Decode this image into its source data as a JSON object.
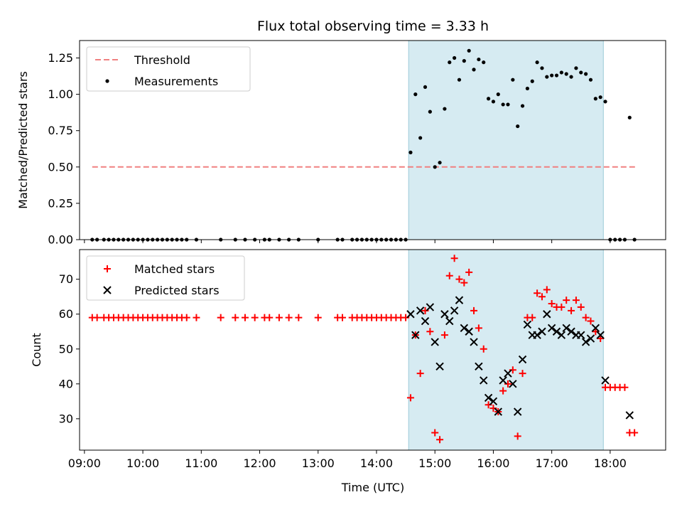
{
  "title": "Flux total observing time = 3.33 h",
  "xlabel": "Time (UTC)",
  "chart_data": [
    {
      "type": "scatter",
      "ylabel": "Matched/Predicted stars",
      "ylim": [
        0,
        1.37
      ],
      "yticks": [
        0.0,
        0.25,
        0.5,
        0.75,
        1.0,
        1.25
      ],
      "yticklabels": [
        "0.00",
        "0.25",
        "0.50",
        "0.75",
        "1.00",
        "1.25"
      ],
      "xlim": [
        "08:55",
        "18:57"
      ],
      "shaded_span": [
        "14:33",
        "17:53"
      ],
      "legend_position": "upper-left",
      "threshold": {
        "name": "Threshold",
        "y": 0.5,
        "x_range": [
          "09:08",
          "18:27"
        ],
        "color": "#f08080"
      },
      "series": [
        {
          "name": "Measurements",
          "color": "#000000",
          "x": [
            "09:08",
            "09:13",
            "09:20",
            "09:25",
            "09:30",
            "09:35",
            "09:40",
            "09:45",
            "09:50",
            "09:55",
            "10:00",
            "10:05",
            "10:10",
            "10:15",
            "10:20",
            "10:25",
            "10:30",
            "10:35",
            "10:40",
            "10:45",
            "10:55",
            "11:20",
            "11:35",
            "11:45",
            "11:55",
            "12:05",
            "12:10",
            "12:20",
            "12:30",
            "12:40",
            "13:00",
            "13:20",
            "13:25",
            "13:35",
            "13:40",
            "13:45",
            "13:50",
            "13:55",
            "14:00",
            "14:05",
            "14:10",
            "14:15",
            "14:20",
            "14:25",
            "14:30",
            "14:35",
            "14:40",
            "14:45",
            "14:50",
            "14:55",
            "15:00",
            "15:05",
            "15:10",
            "15:15",
            "15:20",
            "15:25",
            "15:30",
            "15:35",
            "15:40",
            "15:45",
            "15:50",
            "15:55",
            "16:00",
            "16:05",
            "16:10",
            "16:15",
            "16:20",
            "16:25",
            "16:30",
            "16:35",
            "16:40",
            "16:45",
            "16:50",
            "16:55",
            "17:00",
            "17:05",
            "17:10",
            "17:15",
            "17:20",
            "17:25",
            "17:30",
            "17:35",
            "17:40",
            "17:45",
            "17:50",
            "17:55",
            "18:00",
            "18:05",
            "18:10",
            "18:15",
            "18:20",
            "18:25"
          ],
          "y": [
            0,
            0,
            0,
            0,
            0,
            0,
            0,
            0,
            0,
            0,
            0,
            0,
            0,
            0,
            0,
            0,
            0,
            0,
            0,
            0,
            0,
            0,
            0,
            0,
            0,
            0,
            0,
            0,
            0,
            0,
            0,
            0,
            0,
            0,
            0,
            0,
            0,
            0,
            0,
            0,
            0,
            0,
            0,
            0,
            0,
            0.6,
            1.0,
            0.7,
            1.05,
            0.88,
            0.5,
            0.53,
            0.9,
            1.22,
            1.25,
            1.1,
            1.23,
            1.3,
            1.17,
            1.24,
            1.22,
            0.97,
            0.95,
            1.0,
            0.93,
            0.93,
            1.1,
            0.78,
            0.92,
            1.04,
            1.09,
            1.22,
            1.18,
            1.12,
            1.13,
            1.13,
            1.15,
            1.14,
            1.12,
            1.18,
            1.15,
            1.14,
            1.1,
            0.97,
            0.98,
            0.95,
            0,
            0,
            0,
            0,
            0.84,
            0
          ]
        }
      ]
    },
    {
      "type": "scatter",
      "ylabel": "Count",
      "ylim": [
        21,
        78.5
      ],
      "yticks": [
        30,
        40,
        50,
        60,
        70
      ],
      "yticklabels": [
        "30",
        "40",
        "50",
        "60",
        "70"
      ],
      "xlim": [
        "08:55",
        "18:57"
      ],
      "xticks": [
        "09:00",
        "10:00",
        "11:00",
        "12:00",
        "13:00",
        "14:00",
        "15:00",
        "16:00",
        "17:00",
        "18:00"
      ],
      "shaded_span": [
        "14:33",
        "17:53"
      ],
      "legend_position": "upper-left",
      "series": [
        {
          "name": "Matched stars",
          "marker": "plus",
          "color": "#ff0000",
          "x": [
            "09:08",
            "09:13",
            "09:20",
            "09:25",
            "09:30",
            "09:35",
            "09:40",
            "09:45",
            "09:50",
            "09:55",
            "10:00",
            "10:05",
            "10:10",
            "10:15",
            "10:20",
            "10:25",
            "10:30",
            "10:35",
            "10:40",
            "10:45",
            "10:55",
            "11:20",
            "11:35",
            "11:45",
            "11:55",
            "12:05",
            "12:10",
            "12:20",
            "12:30",
            "12:40",
            "13:00",
            "13:20",
            "13:25",
            "13:35",
            "13:40",
            "13:45",
            "13:50",
            "13:55",
            "14:00",
            "14:05",
            "14:10",
            "14:15",
            "14:20",
            "14:25",
            "14:30",
            "14:35",
            "14:40",
            "14:45",
            "14:50",
            "14:55",
            "15:00",
            "15:05",
            "15:10",
            "15:15",
            "15:20",
            "15:25",
            "15:30",
            "15:35",
            "15:40",
            "15:45",
            "15:50",
            "15:55",
            "16:00",
            "16:05",
            "16:10",
            "16:15",
            "16:20",
            "16:25",
            "16:30",
            "16:35",
            "16:40",
            "16:45",
            "16:50",
            "16:55",
            "17:00",
            "17:05",
            "17:10",
            "17:15",
            "17:20",
            "17:25",
            "17:30",
            "17:35",
            "17:40",
            "17:45",
            "17:50",
            "17:55",
            "18:00",
            "18:05",
            "18:10",
            "18:15",
            "18:20",
            "18:25"
          ],
          "y": [
            59,
            59,
            59,
            59,
            59,
            59,
            59,
            59,
            59,
            59,
            59,
            59,
            59,
            59,
            59,
            59,
            59,
            59,
            59,
            59,
            59,
            59,
            59,
            59,
            59,
            59,
            59,
            59,
            59,
            59,
            59,
            59,
            59,
            59,
            59,
            59,
            59,
            59,
            59,
            59,
            59,
            59,
            59,
            59,
            59,
            36,
            54,
            43,
            61,
            55,
            26,
            24,
            54,
            71,
            76,
            70,
            69,
            72,
            61,
            56,
            50,
            34,
            33,
            32,
            38,
            40,
            44,
            25,
            43,
            59,
            59,
            66,
            65,
            67,
            63,
            62,
            62,
            64,
            61,
            64,
            62,
            59,
            58,
            55,
            53,
            39,
            39,
            39,
            39,
            39,
            26,
            26
          ]
        },
        {
          "name": "Predicted stars",
          "marker": "x",
          "color": "#000000",
          "x": [
            "14:35",
            "14:40",
            "14:45",
            "14:50",
            "14:55",
            "15:00",
            "15:05",
            "15:10",
            "15:15",
            "15:20",
            "15:25",
            "15:30",
            "15:35",
            "15:40",
            "15:45",
            "15:50",
            "15:55",
            "16:00",
            "16:05",
            "16:10",
            "16:15",
            "16:20",
            "16:25",
            "16:30",
            "16:35",
            "16:40",
            "16:45",
            "16:50",
            "16:55",
            "17:00",
            "17:05",
            "17:10",
            "17:15",
            "17:20",
            "17:25",
            "17:30",
            "17:35",
            "17:40",
            "17:45",
            "17:50",
            "17:55",
            "18:20"
          ],
          "y": [
            60,
            54,
            61,
            58,
            62,
            52,
            45,
            60,
            58,
            61,
            64,
            56,
            55,
            52,
            45,
            41,
            36,
            35,
            32,
            41,
            43,
            40,
            32,
            47,
            57,
            54,
            54,
            55,
            60,
            56,
            55,
            54,
            56,
            55,
            54,
            54,
            52,
            53,
            56,
            54,
            41,
            31
          ]
        }
      ]
    }
  ]
}
